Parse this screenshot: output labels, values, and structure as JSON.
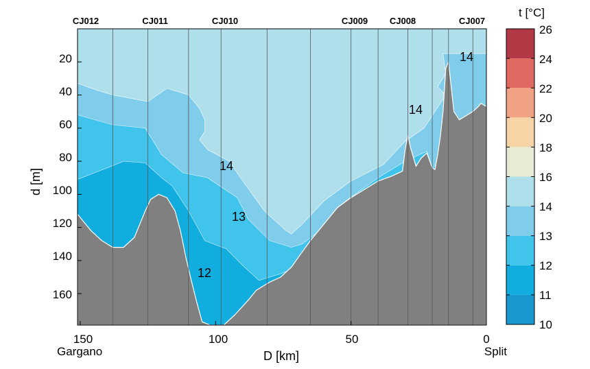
{
  "chart_data": {
    "type": "contour-section",
    "xlabel": "D [km]",
    "ylabel": "d [m]",
    "colorbar_title": "t [°C]",
    "x_ticks": [
      "150",
      "100",
      "50",
      "0"
    ],
    "x_tick_values": [
      150,
      100,
      50,
      0
    ],
    "y_ticks": [
      "20",
      "40",
      "60",
      "80",
      "100",
      "120",
      "140",
      "160"
    ],
    "y_tick_values": [
      20,
      40,
      60,
      80,
      100,
      120,
      140,
      160
    ],
    "xlim": [
      151,
      0
    ],
    "ylim": [
      0,
      179
    ],
    "x_reversed": true,
    "y_reversed": true,
    "endpoint_labels": {
      "left": "Gargano",
      "right": "Split"
    },
    "stations": [
      {
        "name": "CJ012",
        "D": 150
      },
      {
        "name": "CJ011",
        "D": 124
      },
      {
        "name": "CJ010",
        "D": 98
      },
      {
        "name": "CJ009",
        "D": 49
      },
      {
        "name": "CJ008",
        "D": 31
      },
      {
        "name": "CJ007",
        "D": 5
      }
    ],
    "profile_lines_D": [
      151,
      138,
      125,
      110,
      98,
      81,
      65,
      50,
      40,
      29,
      20,
      14,
      5,
      0
    ],
    "colorbar": {
      "levels": [
        10,
        11,
        12,
        13,
        14,
        16,
        18,
        20,
        22,
        24,
        26
      ],
      "tick_labels": [
        "10",
        "11",
        "12",
        "13",
        "14",
        "16",
        "18",
        "20",
        "22",
        "24",
        "26"
      ],
      "colors": [
        "#1997cf",
        "#12addf",
        "#40c4ec",
        "#7fcdeb",
        "#b0dfec",
        "#e7ebd6",
        "#f6d4a5",
        "#f2a284",
        "#e06a62",
        "#b23946"
      ]
    },
    "contour_labels": [
      {
        "text": "14",
        "D": 7,
        "d": 18
      },
      {
        "text": "14",
        "D": 26,
        "d": 56
      },
      {
        "text": "14",
        "D": 96,
        "d": 83
      },
      {
        "text": "13",
        "D": 92,
        "d": 112
      },
      {
        "text": "12",
        "D": 105,
        "d": 148
      }
    ],
    "fill_regions": [
      {
        "level": "14-16",
        "color": "#b0dfec",
        "boundary": [
          [
            151,
            0
          ],
          [
            0,
            0
          ],
          [
            0,
            15
          ],
          [
            16,
            15
          ],
          [
            15,
            27
          ],
          [
            18,
            35
          ],
          [
            15,
            40
          ],
          [
            23,
            60
          ],
          [
            30,
            68
          ],
          [
            38,
            82
          ],
          [
            50,
            92
          ],
          [
            60,
            104
          ],
          [
            68,
            118
          ],
          [
            72,
            124
          ],
          [
            74,
            122
          ],
          [
            82,
            110
          ],
          [
            90,
            92
          ],
          [
            95,
            80
          ],
          [
            103,
            73
          ],
          [
            106,
            67
          ],
          [
            104,
            62
          ],
          [
            104,
            55
          ],
          [
            106,
            48
          ],
          [
            110,
            40
          ],
          [
            118,
            36
          ],
          [
            125,
            44
          ],
          [
            138,
            40
          ],
          [
            144,
            37
          ],
          [
            151,
            33
          ]
        ]
      },
      {
        "level": "13-14",
        "color": "#7fcdeb",
        "boundary": [
          [
            151,
            33
          ],
          [
            144,
            37
          ],
          [
            138,
            40
          ],
          [
            125,
            44
          ],
          [
            118,
            36
          ],
          [
            110,
            40
          ],
          [
            106,
            48
          ],
          [
            104,
            55
          ],
          [
            104,
            62
          ],
          [
            106,
            67
          ],
          [
            103,
            73
          ],
          [
            95,
            80
          ],
          [
            90,
            92
          ],
          [
            82,
            110
          ],
          [
            74,
            122
          ],
          [
            72,
            124
          ],
          [
            68,
            118
          ],
          [
            60,
            104
          ],
          [
            50,
            92
          ],
          [
            38,
            82
          ],
          [
            30,
            68
          ],
          [
            23,
            60
          ],
          [
            15,
            40
          ],
          [
            18,
            35
          ],
          [
            15,
            27
          ],
          [
            16,
            15
          ],
          [
            0,
            15
          ],
          [
            0,
            179
          ],
          [
            151,
            179
          ]
        ]
      },
      {
        "level": "12-13",
        "color": "#40c4ec",
        "boundary": [
          [
            151,
            52
          ],
          [
            138,
            58
          ],
          [
            126,
            60
          ],
          [
            120,
            76
          ],
          [
            112,
            87
          ],
          [
            103,
            90
          ],
          [
            92,
            102
          ],
          [
            88,
            115
          ],
          [
            80,
            128
          ],
          [
            72,
            132
          ],
          [
            68,
            130
          ],
          [
            60,
            120
          ],
          [
            52,
            104
          ],
          [
            40,
            90
          ],
          [
            30,
            80
          ],
          [
            22,
            74
          ],
          [
            20,
            84
          ],
          [
            15,
            78
          ],
          [
            0,
            78
          ],
          [
            0,
            179
          ],
          [
            151,
            179
          ]
        ]
      },
      {
        "level": "11-12",
        "color": "#12addf",
        "boundary": [
          [
            151,
            91
          ],
          [
            140,
            84
          ],
          [
            134,
            80
          ],
          [
            126,
            81
          ],
          [
            120,
            90
          ],
          [
            116,
            95
          ],
          [
            110,
            110
          ],
          [
            104,
            128
          ],
          [
            96,
            133
          ],
          [
            90,
            143
          ],
          [
            84,
            152
          ],
          [
            76,
            148
          ],
          [
            70,
            144
          ],
          [
            66,
            146
          ],
          [
            60,
            150
          ],
          [
            60,
            179
          ],
          [
            151,
            179
          ]
        ]
      },
      {
        "level": "seafloor",
        "color": "#808080",
        "boundary": [
          [
            151,
            112
          ],
          [
            146,
            122
          ],
          [
            142,
            128
          ],
          [
            138,
            132
          ],
          [
            134,
            132
          ],
          [
            130,
            126
          ],
          [
            126,
            110
          ],
          [
            124,
            103
          ],
          [
            121,
            100
          ],
          [
            118,
            102
          ],
          [
            115,
            110
          ],
          [
            113,
            122
          ],
          [
            111,
            138
          ],
          [
            109,
            152
          ],
          [
            107,
            165
          ],
          [
            105,
            177
          ],
          [
            102,
            179
          ],
          [
            97,
            179
          ],
          [
            93,
            173
          ],
          [
            88,
            164
          ],
          [
            85,
            158
          ],
          [
            80,
            153
          ],
          [
            76,
            150
          ],
          [
            72,
            144
          ],
          [
            69,
            137
          ],
          [
            65,
            128
          ],
          [
            60,
            118
          ],
          [
            55,
            108
          ],
          [
            50,
            102
          ],
          [
            45,
            97
          ],
          [
            40,
            92
          ],
          [
            35,
            89
          ],
          [
            31,
            86
          ],
          [
            30,
            73
          ],
          [
            29,
            64
          ],
          [
            28,
            72
          ],
          [
            26,
            83
          ],
          [
            24,
            78
          ],
          [
            22,
            75
          ],
          [
            20,
            84
          ],
          [
            19,
            85
          ],
          [
            18,
            76
          ],
          [
            17,
            65
          ],
          [
            16,
            50
          ],
          [
            15,
            24
          ],
          [
            14,
            20
          ],
          [
            13,
            35
          ],
          [
            12,
            50
          ],
          [
            10,
            55
          ],
          [
            8,
            53
          ],
          [
            5,
            50
          ],
          [
            3,
            47
          ],
          [
            2,
            45
          ],
          [
            0,
            47
          ],
          [
            0,
            179
          ],
          [
            151,
            179
          ]
        ]
      }
    ]
  }
}
